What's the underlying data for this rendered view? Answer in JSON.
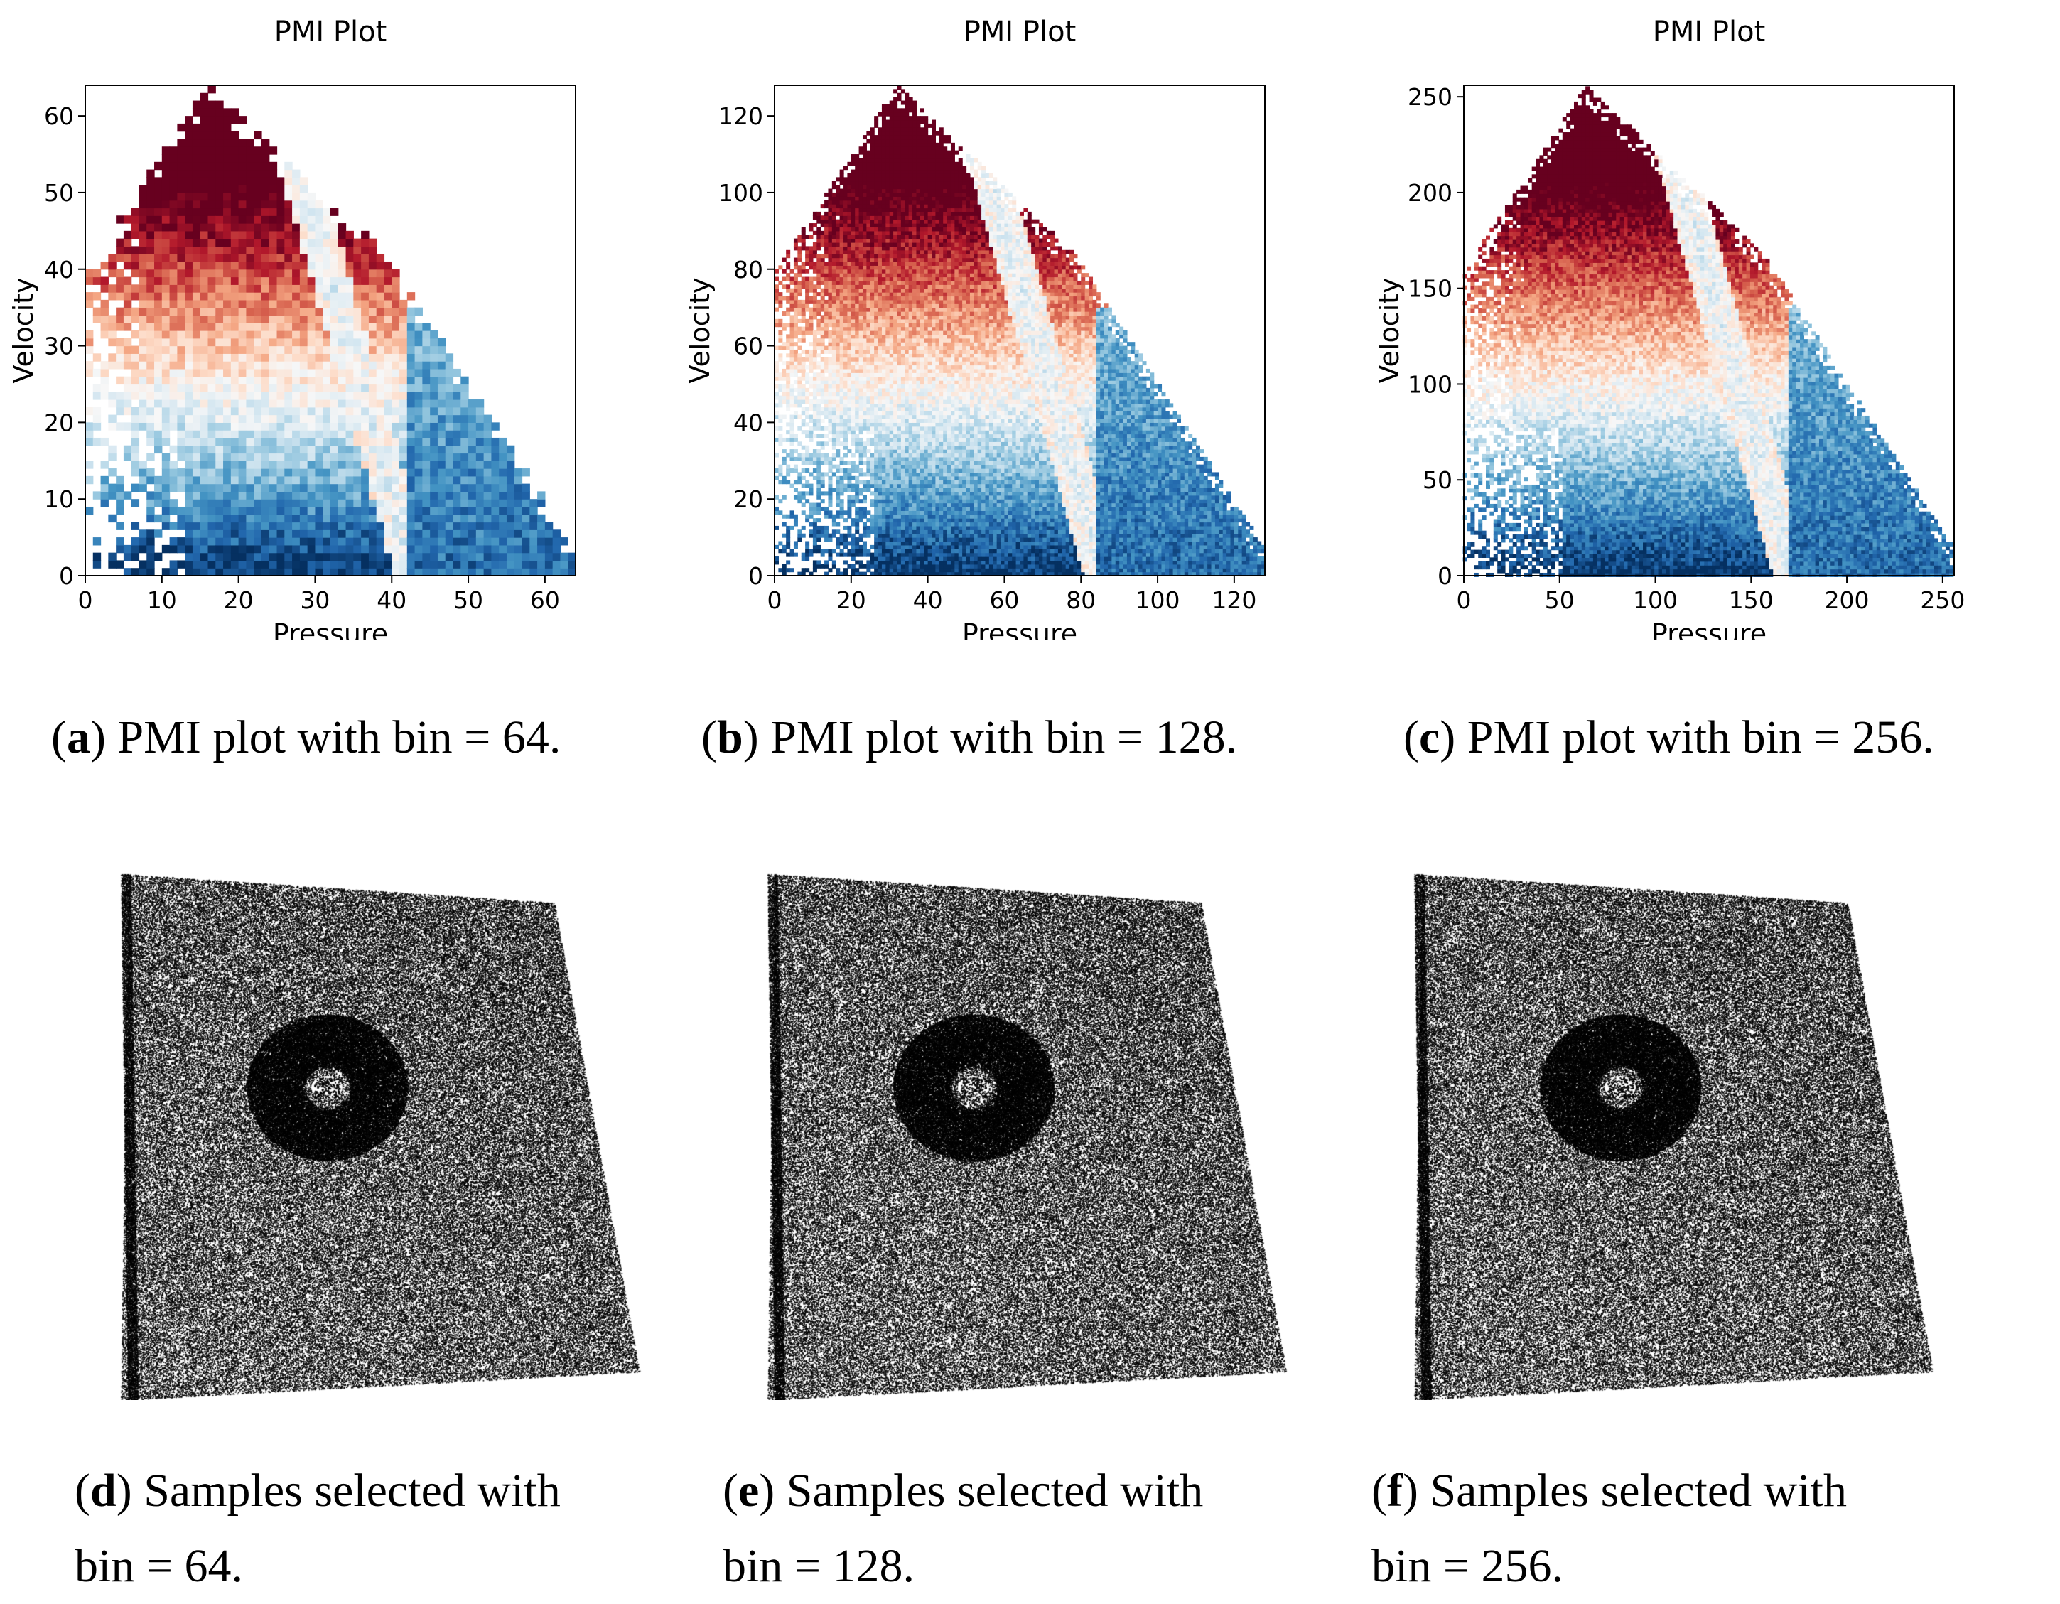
{
  "chart_data": [
    {
      "type": "heatmap",
      "title": "PMI Plot",
      "xlabel": "Pressure",
      "ylabel": "Velocity",
      "bins": 64,
      "xlim": [
        0,
        64
      ],
      "ylim": [
        0,
        64
      ],
      "xticks": [
        0,
        10,
        20,
        30,
        40,
        50,
        60
      ],
      "yticks": [
        0,
        10,
        20,
        30,
        40,
        50,
        60
      ],
      "colormap": "RdBu",
      "color_high": "#b2182b",
      "color_low": "#2166ac",
      "caption_label": "a",
      "caption_text": " PMI plot with bin = 64."
    },
    {
      "type": "heatmap",
      "title": "PMI Plot",
      "xlabel": "Pressure",
      "ylabel": "Velocity",
      "bins": 128,
      "xlim": [
        0,
        128
      ],
      "ylim": [
        0,
        128
      ],
      "xticks": [
        0,
        20,
        40,
        60,
        80,
        100,
        120
      ],
      "yticks": [
        0,
        20,
        40,
        60,
        80,
        100,
        120
      ],
      "colormap": "RdBu",
      "color_high": "#b2182b",
      "color_low": "#2166ac",
      "caption_label": "b",
      "caption_text": " PMI plot with bin = 128."
    },
    {
      "type": "heatmap",
      "title": "PMI Plot",
      "xlabel": "Pressure",
      "ylabel": "Velocity",
      "bins": 256,
      "xlim": [
        0,
        256
      ],
      "ylim": [
        0,
        256
      ],
      "xticks": [
        0,
        50,
        100,
        150,
        200,
        250
      ],
      "yticks": [
        0,
        50,
        100,
        150,
        200,
        250
      ],
      "colormap": "RdBu",
      "color_high": "#b2182b",
      "color_low": "#2166ac",
      "caption_label": "c",
      "caption_text": " PMI plot with bin = 256."
    }
  ],
  "samples": [
    {
      "caption_label": "d",
      "caption_line1": " Samples selected with",
      "caption_line2": "bin = 64.",
      "bins": 64
    },
    {
      "caption_label": "e",
      "caption_line1": " Samples selected with",
      "caption_line2": "bin = 128.",
      "bins": 128
    },
    {
      "caption_label": "f",
      "caption_line1": " Samples selected with",
      "caption_line2": "bin = 256.",
      "bins": 256
    }
  ],
  "colors": {
    "point": "#000000",
    "background": "#ffffff"
  }
}
